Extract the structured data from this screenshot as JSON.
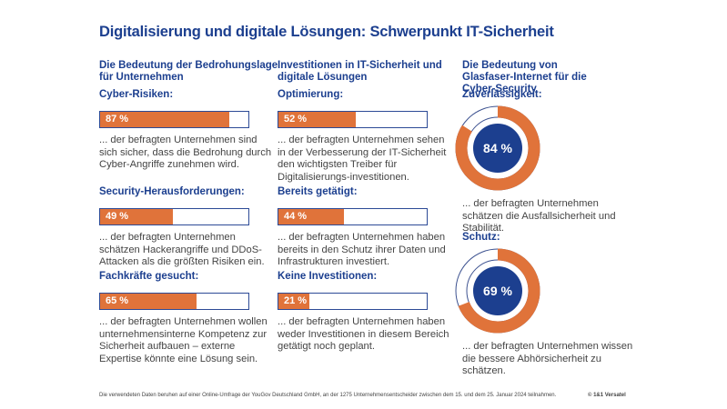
{
  "title": "Digitalisierung und digitale Lösungen: Schwerpunkt IT-Sicherheit",
  "columns": [
    {
      "heading": "Die Bedeutung der Bedrohungslage für Unternehmen",
      "items": [
        {
          "label": "Cyber-Risiken:",
          "value": 87,
          "value_text": "87 %",
          "text": "... der befragten Unternehmen sind sich sicher, dass die Bedrohung durch Cyber-Angriffe zunehmen wird."
        },
        {
          "label": "Security-Herausforderungen:",
          "value": 49,
          "value_text": "49 %",
          "text": "... der befragten Unternehmen schätzen Hackerangriffe und DDoS-Attacken als die größten Risiken ein."
        },
        {
          "label": "Fachkräfte gesucht:",
          "value": 65,
          "value_text": "65 %",
          "text": "... der befragten Unternehmen wollen unternehmensinterne Kompetenz zur Sicherheit aufbauen – externe Expertise könnte eine Lösung sein."
        }
      ]
    },
    {
      "heading": "Investitionen in IT-Sicherheit und digitale Lösungen",
      "items": [
        {
          "label": "Optimierung:",
          "value": 52,
          "value_text": "52 %",
          "text": "... der befragten Unternehmen sehen in der Verbesserung der IT-Sicherheit den wichtigsten Treiber für Digitalisierungs-investitionen."
        },
        {
          "label": "Bereits getätigt:",
          "value": 44,
          "value_text": "44 %",
          "text": "... der befragten Unternehmen haben bereits in den Schutz ihrer Daten und Infrastrukturen investiert."
        },
        {
          "label": "Keine Investitionen:",
          "value": 21,
          "value_text": "21 %",
          "text": "... der befragten Unternehmen haben weder Investitionen in diesem Bereich getätigt noch geplant."
        }
      ]
    },
    {
      "heading": "Die Bedeutung von Glasfaser-Internet für die Cyber-Security",
      "items": [
        {
          "label": "Zuverlässigkeit:",
          "value": 84,
          "value_text": "84 %",
          "text": "...  der befragten Unternehmen schätzen die  Ausfallsicherheit und Stabilität."
        },
        {
          "label": "Schutz:",
          "value": 69,
          "value_text": "69 %",
          "text": "... der befragten Unternehmen wissen die bessere Abhörsicherheit zu schätzen."
        }
      ]
    }
  ],
  "footer": {
    "note": "Die verwendeten Daten beruhen auf einer Online-Umfrage der YouGov Deutschland GmbH, an der 1275 Unternehmensentscheider zwischen dem 15. und dem 25. Januar 2024 teilnahmen.",
    "copyright": "© 1&1 Versatel"
  },
  "colors": {
    "accent": "#e0733a",
    "brand": "#1c3f8f"
  }
}
